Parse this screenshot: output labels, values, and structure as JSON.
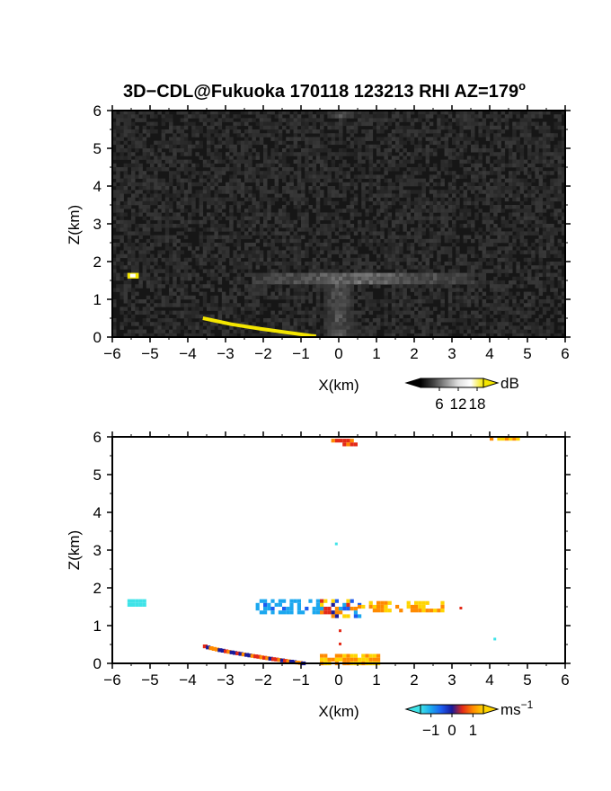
{
  "title": "3D−CDL@Fukuoka 170118 123213 RHI AZ=179",
  "title_superscript": "o",
  "chart_data": [
    {
      "type": "heatmap",
      "panel": "reflectivity",
      "xlabel": "X(km)",
      "ylabel": "Z(km)",
      "xlim": [
        -6,
        6
      ],
      "ylim": [
        0,
        6
      ],
      "grid": false,
      "x_ticks": [
        "−6",
        "−5",
        "−4",
        "−3",
        "−2",
        "−1",
        "0",
        "1",
        "2",
        "3",
        "4",
        "5",
        "6"
      ],
      "y_ticks": [
        "0",
        "1",
        "2",
        "3",
        "4",
        "5",
        "6"
      ],
      "background": "noise, dark grey (approx. 0–6 dB)",
      "features": [
        {
          "shape": "layer",
          "x": [
            -2.3,
            3.6
          ],
          "z": [
            1.4,
            1.7
          ],
          "value_db": 9,
          "note": "bright grey layer near 1.5 km"
        },
        {
          "shape": "column",
          "x": [
            -0.35,
            0.35
          ],
          "z": [
            0.0,
            1.6
          ],
          "value_db": 7
        },
        {
          "shape": "blob",
          "x": [
            -0.2,
            0.4
          ],
          "z": [
            5.8,
            6.0
          ],
          "value_db": 8
        },
        {
          "shape": "blob",
          "x": [
            -5.6,
            -5.3
          ],
          "z": [
            1.55,
            1.7
          ],
          "value_db": 18,
          "note": "bright yellow/white target"
        },
        {
          "shape": "line",
          "x": [
            -3.6,
            -0.6
          ],
          "z": [
            0.5,
            0.02
          ],
          "value_db": 20,
          "note": "yellow ground clutter line"
        }
      ],
      "colorbar": {
        "unit": "dB",
        "ticks": [
          "6",
          "12",
          "18"
        ],
        "min": 0,
        "max": 20,
        "colormap": "greyscale with yellow extension"
      }
    },
    {
      "type": "heatmap",
      "panel": "doppler_velocity",
      "xlabel": "X(km)",
      "ylabel": "Z(km)",
      "xlim": [
        -6,
        6
      ],
      "ylim": [
        0,
        6
      ],
      "grid": false,
      "x_ticks": [
        "−6",
        "−5",
        "−4",
        "−3",
        "−2",
        "−1",
        "0",
        "1",
        "2",
        "3",
        "4",
        "5",
        "6"
      ],
      "y_ticks": [
        "0",
        "1",
        "2",
        "3",
        "4",
        "5",
        "6"
      ],
      "features": [
        {
          "shape": "layer",
          "x": [
            -2.2,
            -0.5
          ],
          "z": [
            1.35,
            1.7
          ],
          "velocity": -0.7
        },
        {
          "shape": "layer",
          "x": [
            -0.5,
            0.5
          ],
          "z": [
            1.2,
            1.7
          ],
          "velocity": 0.0,
          "note": "mixed blue/red/yellow"
        },
        {
          "shape": "layer",
          "x": [
            0.5,
            2.7
          ],
          "z": [
            1.4,
            1.65
          ],
          "velocity": 0.8
        },
        {
          "shape": "blob",
          "x": [
            -5.6,
            -5.2
          ],
          "z": [
            1.5,
            1.7
          ],
          "velocity": -1.2
        },
        {
          "shape": "line",
          "x": [
            -3.6,
            -1.0
          ],
          "z": [
            0.5,
            0.05
          ],
          "velocity": 0.3
        },
        {
          "shape": "blob",
          "x": [
            -0.2,
            0.4
          ],
          "z": [
            5.75,
            5.95
          ],
          "velocity": 0.4
        },
        {
          "shape": "blob",
          "x": [
            -0.5,
            1.0
          ],
          "z": [
            0.0,
            0.25
          ],
          "velocity": 0.7
        },
        {
          "shape": "blob",
          "x": [
            4.0,
            4.8
          ],
          "z": [
            5.95,
            6.0
          ],
          "velocity": 0.8
        }
      ],
      "colorbar": {
        "unit": "ms",
        "unit_superscript": "−1",
        "ticks": [
          "−1",
          "0",
          "1"
        ],
        "min": -1.5,
        "max": 1.5,
        "colormap": "cyan-blue-red-yellow"
      }
    }
  ]
}
